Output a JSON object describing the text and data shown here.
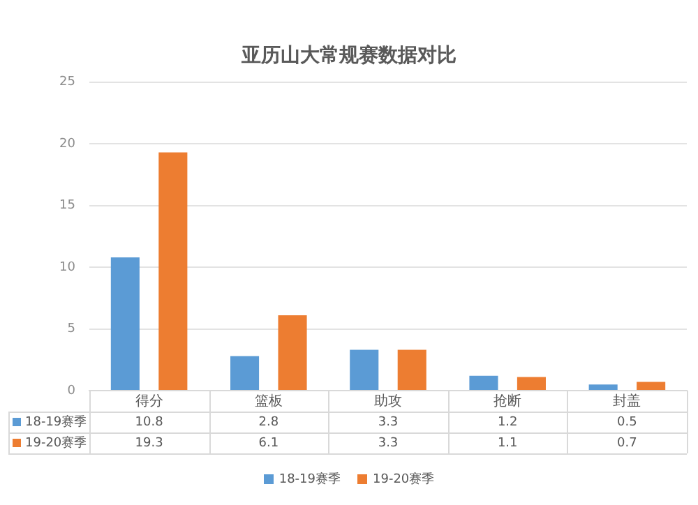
{
  "chart_data": {
    "type": "bar",
    "title": "亚历山大常规赛数据对比",
    "categories": [
      "得分",
      "篮板",
      "助攻",
      "抢断",
      "封盖"
    ],
    "series": [
      {
        "name": "18-19赛季",
        "color": "#5b9bd5",
        "values": [
          10.8,
          2.8,
          3.3,
          1.2,
          0.5
        ]
      },
      {
        "name": "19-20赛季",
        "color": "#ed7d31",
        "values": [
          19.3,
          6.1,
          3.3,
          1.1,
          0.7
        ]
      }
    ],
    "ylim": [
      0,
      25
    ],
    "yticks": [
      0,
      5,
      10,
      15,
      20,
      25
    ],
    "grid": "y",
    "legend": "bottom",
    "data_labels": true
  }
}
